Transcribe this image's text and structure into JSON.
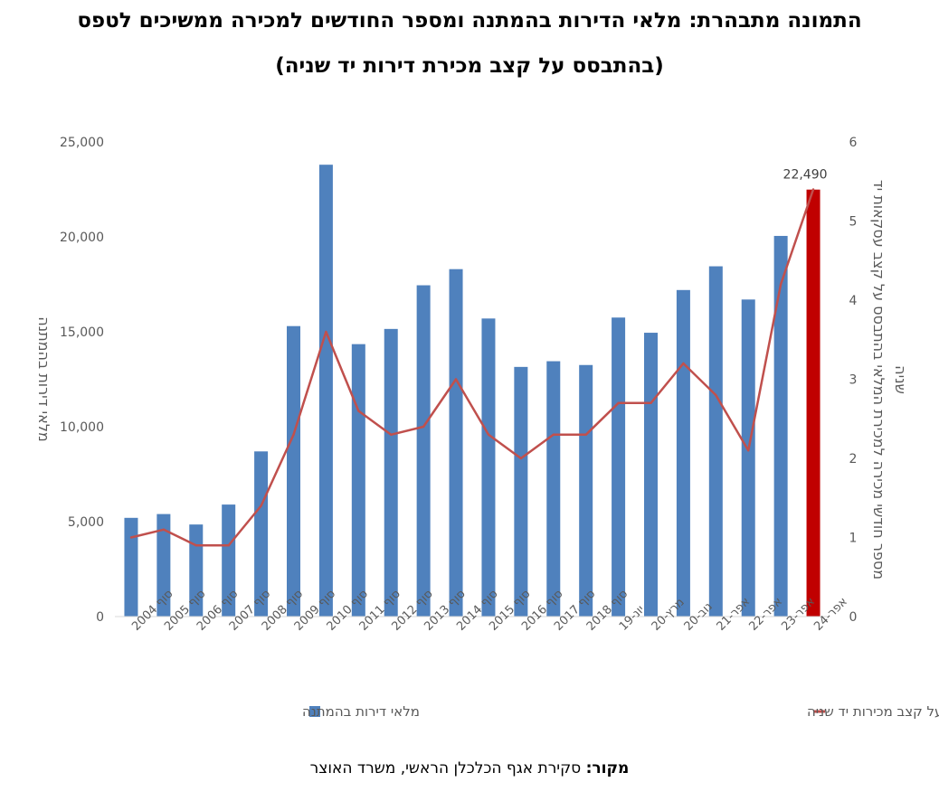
{
  "title_line1": "התמונה מתבהרת: מלאי הדירות בהמתנה ומספר החודשים למכירה ממשיכים לטפס",
  "title_line2": "(בהתבסס על קצב מכירת דירות יד שניה)",
  "source_label": "מקור:",
  "source_text": "סקירת אגף הכלכלן הראשי, משרד האוצר",
  "colors": {
    "bars": "#4f81bd",
    "highlight_bar": "#c00000",
    "line": "#c0504d",
    "axis_text": "#595959"
  },
  "chart_data": {
    "type": "bar",
    "categories": [
      "סוף 2004",
      "סוף 2005",
      "סוף 2006",
      "סוף 2007",
      "סוף 2008",
      "סוף 2009",
      "סוף 2010",
      "סוף 2011",
      "סוף 2012",
      "סוף 2013",
      "סוף 2014",
      "סוף 2015",
      "סוף 2016",
      "סוף 2017",
      "סוף 2018",
      "יונ-19",
      "מרץ-20",
      "נוב-20",
      "אפר-21",
      "אפר-22",
      "אפר-23",
      "אפר-24"
    ],
    "series": [
      {
        "name": "מלאי דירות בהמתנה",
        "type": "bar",
        "axis": "left",
        "values": [
          5200,
          5400,
          4850,
          5900,
          8700,
          15300,
          23800,
          14350,
          15150,
          17450,
          18300,
          15700,
          13150,
          13450,
          13250,
          15750,
          14950,
          17200,
          18450,
          16700,
          20050,
          22490
        ]
      },
      {
        "name": "מספר חודשים למכירת המלאי, בהתבסס על קצב מכירות יד שניה",
        "type": "line",
        "axis": "right",
        "values": [
          1.0,
          1.1,
          0.9,
          0.9,
          1.4,
          2.3,
          3.6,
          2.6,
          2.3,
          2.4,
          3.0,
          2.3,
          2.0,
          2.3,
          2.3,
          2.7,
          2.7,
          3.2,
          2.8,
          2.1,
          4.2,
          5.4
        ]
      }
    ],
    "highlight_index": 21,
    "data_label": "22,490",
    "ylabel": "מלאי דירות בהמתנה",
    "y2label_line1": "מספר חודשי מכירה למכירת המלאי בהתבסס על קצב עסקאות יד",
    "y2label_line2": "שניה",
    "ylim": [
      0,
      25000
    ],
    "y_ticks": [
      "0",
      "5,000",
      "10,000",
      "15,000",
      "20,000",
      "25,000"
    ],
    "y_tick_values": [
      0,
      5000,
      10000,
      15000,
      20000,
      25000
    ],
    "y2lim": [
      0,
      6
    ],
    "y2_ticks": [
      "0",
      "1",
      "2",
      "3",
      "4",
      "5",
      "6"
    ],
    "y2_tick_values": [
      0,
      1,
      2,
      3,
      4,
      5,
      6
    ],
    "grid": false,
    "legend_position": "bottom"
  }
}
